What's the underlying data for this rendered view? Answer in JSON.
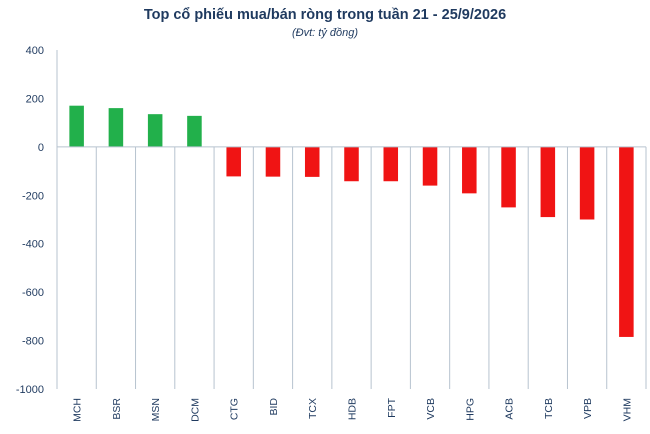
{
  "chart_data": {
    "type": "bar",
    "title": "Top cổ phiếu mua/bán ròng trong tuần 21 - 25/9/2026",
    "subtitle": "(Đvt: tỷ đồng)",
    "xlabel": "",
    "ylabel": "",
    "ylim": [
      -1000,
      400
    ],
    "yticks": [
      400,
      200,
      0,
      -200,
      -400,
      -600,
      -800,
      -1000
    ],
    "grid": false,
    "legend": "none",
    "categories": [
      "MCH",
      "BSR",
      "MSN",
      "DCM",
      "CTG",
      "BID",
      "TCX",
      "HDB",
      "FPT",
      "VCB",
      "HPG",
      "ACB",
      "TCB",
      "VPB",
      "VHM"
    ],
    "values": [
      170,
      160,
      135,
      128,
      -122,
      -123,
      -124,
      -142,
      -142,
      -160,
      -192,
      -250,
      -290,
      -300,
      -785
    ],
    "colors": {
      "positive": "#22b04b",
      "negative": "#f01414",
      "axis": "#b7c3cf",
      "text": "#1f3a5f"
    }
  }
}
